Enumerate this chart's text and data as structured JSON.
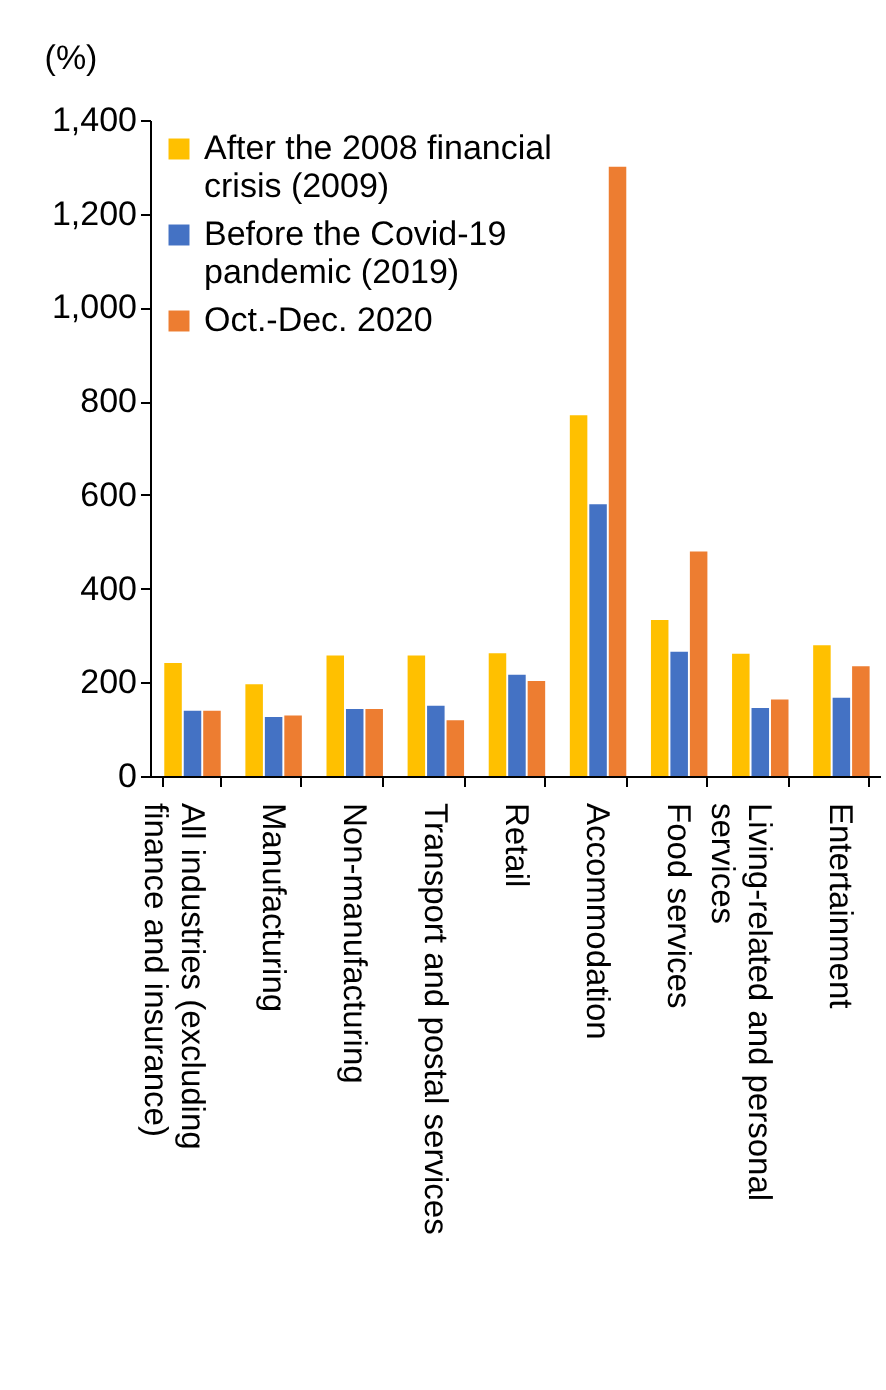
{
  "chart_data": {
    "type": "bar",
    "ylabel": "(%)",
    "categories": [
      "All industries (excluding finance and insurance)",
      "Manufacturing",
      "Non-manufacturing",
      "Transport and postal services",
      "Retail",
      "Accommodation",
      "Food services",
      "Living-related and personal services",
      "Entertainment"
    ],
    "series": [
      {
        "name": "After the 2008 financial crisis (2009)",
        "color": "#ffc000",
        "values": [
          241,
          196,
          257,
          257,
          262,
          770,
          333,
          261,
          279
        ]
      },
      {
        "name": "Before the Covid-19 pandemic (2019)",
        "color": "#4472c4",
        "values": [
          139,
          126,
          143,
          150,
          216,
          580,
          265,
          145,
          167
        ]
      },
      {
        "name": "Oct.-Dec. 2020",
        "color": "#ed7d31",
        "values": [
          139,
          129,
          143,
          119,
          203,
          1300,
          479,
          163,
          234
        ]
      }
    ],
    "ylim": [
      0,
      1400
    ],
    "yticks": [
      0,
      200,
      400,
      600,
      800,
      {
        "value": 1000,
        "label": "1,000"
      },
      {
        "value": 1200,
        "label": "1,200"
      },
      {
        "value": 1400,
        "label": "1,400"
      }
    ],
    "grid": false,
    "legend": "top left"
  }
}
